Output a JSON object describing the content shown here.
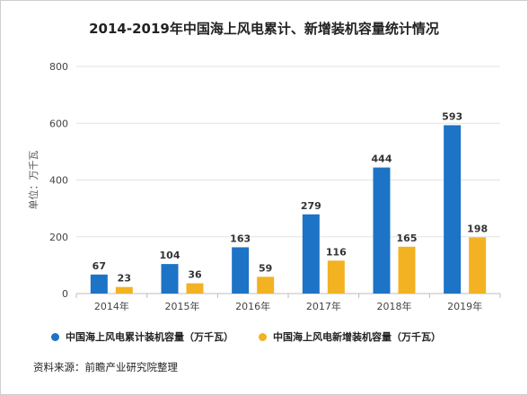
{
  "title": "2014-2019年中国海上风电累计、新增装机容量统计情况",
  "source": "资料来源：前瞻产业研究院整理",
  "colors": {
    "cumulative": "#1d73c5",
    "new": "#f2b222"
  },
  "chart_data": {
    "type": "bar",
    "title": "2014-2019年中国海上风电累计、新增装机容量统计情况",
    "ylabel": "单位：万千瓦",
    "xlabel": "",
    "categories": [
      "2014年",
      "2015年",
      "2016年",
      "2017年",
      "2018年",
      "2019年"
    ],
    "ylim": [
      0,
      800
    ],
    "yticks": [
      "0",
      "200",
      "400",
      "600",
      "800"
    ],
    "grid": true,
    "legend": "bottom",
    "series": [
      {
        "name": "中国海上风电累计装机容量（万千瓦）",
        "values": [
          67,
          104,
          163,
          279,
          444,
          593
        ]
      },
      {
        "name": "中国海上风电新增装机容量（万千瓦）",
        "values": [
          23,
          36,
          59,
          116,
          165,
          198
        ]
      }
    ]
  }
}
